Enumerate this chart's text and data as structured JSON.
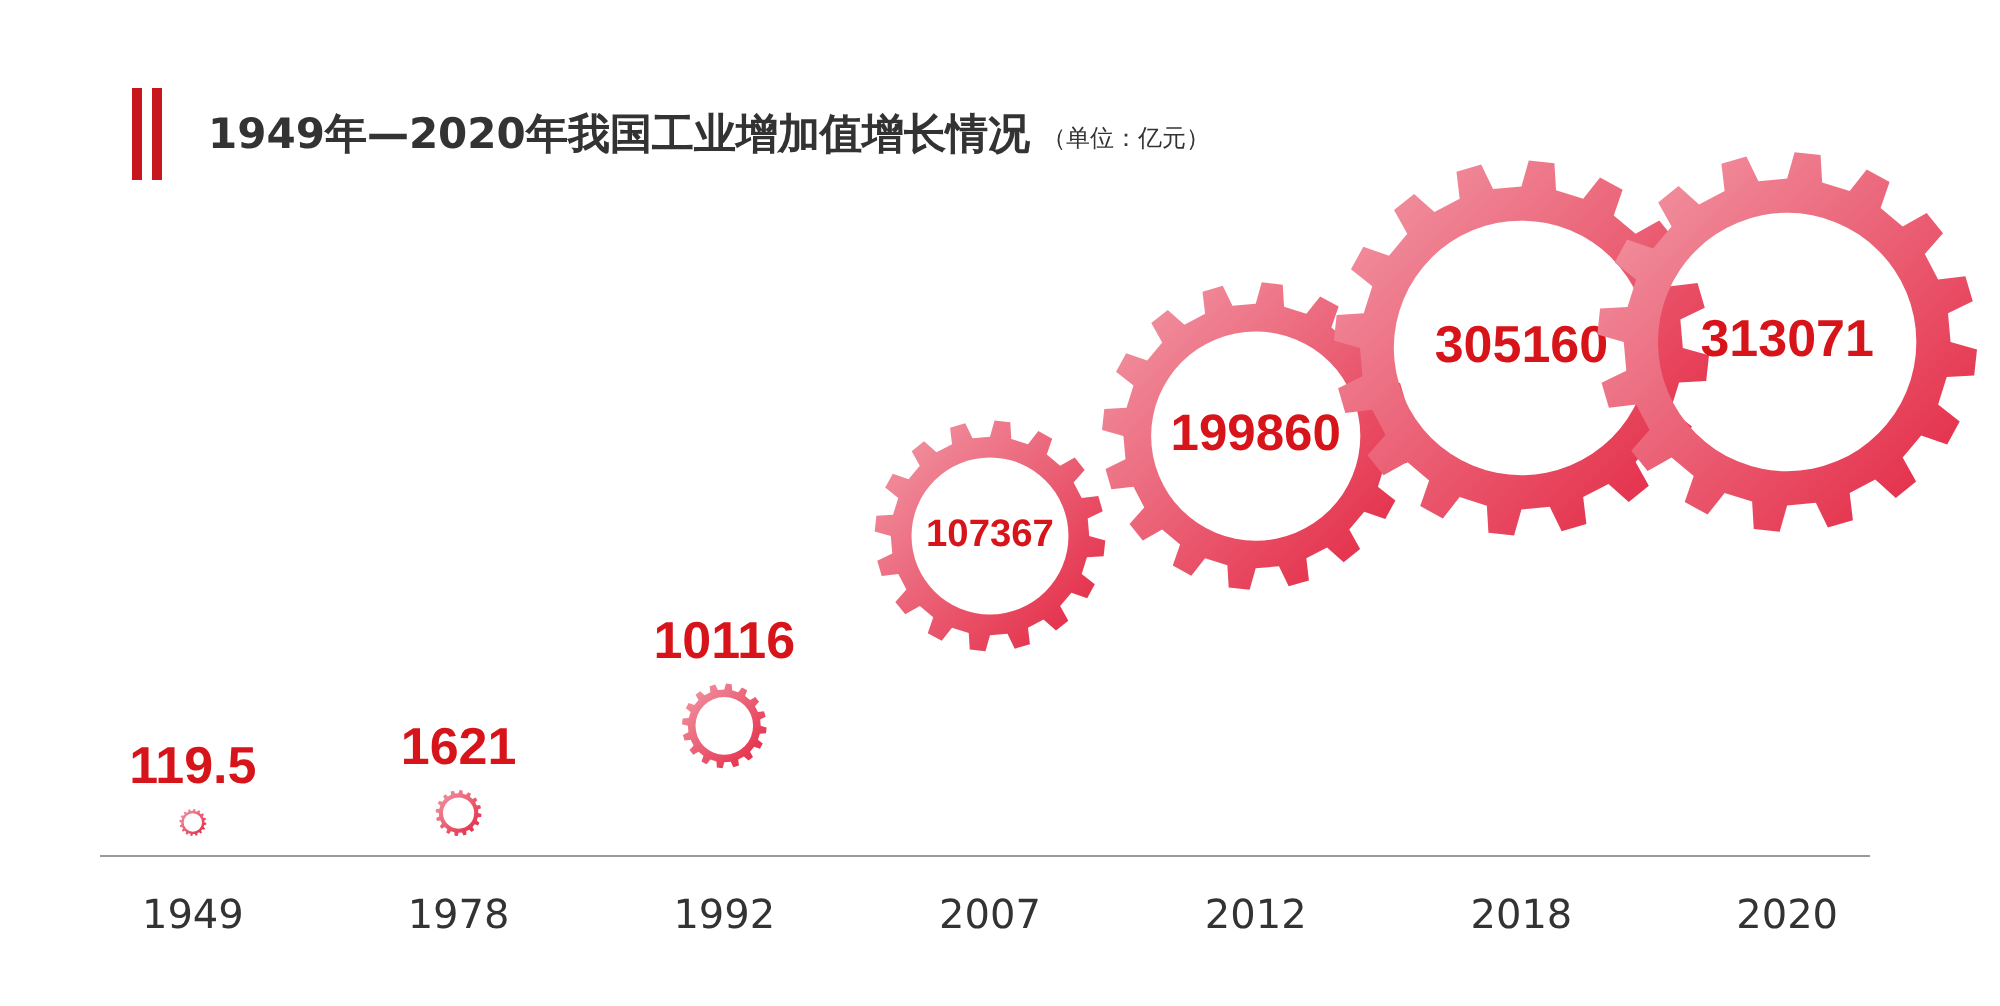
{
  "chart_data": {
    "type": "other",
    "title": "1949年—2020年我国工业增加值增长情况",
    "subtitle": "（单位：亿元）",
    "categories": [
      "1949",
      "1978",
      "1992",
      "2007",
      "2012",
      "2018",
      "2020"
    ],
    "values": [
      119.5,
      1621,
      10116,
      107367,
      199860,
      305160,
      313071
    ],
    "value_labels": [
      "119.5",
      "1621",
      "10116",
      "107367",
      "199860",
      "305160",
      "313071"
    ],
    "color": "#e3223f"
  }
}
